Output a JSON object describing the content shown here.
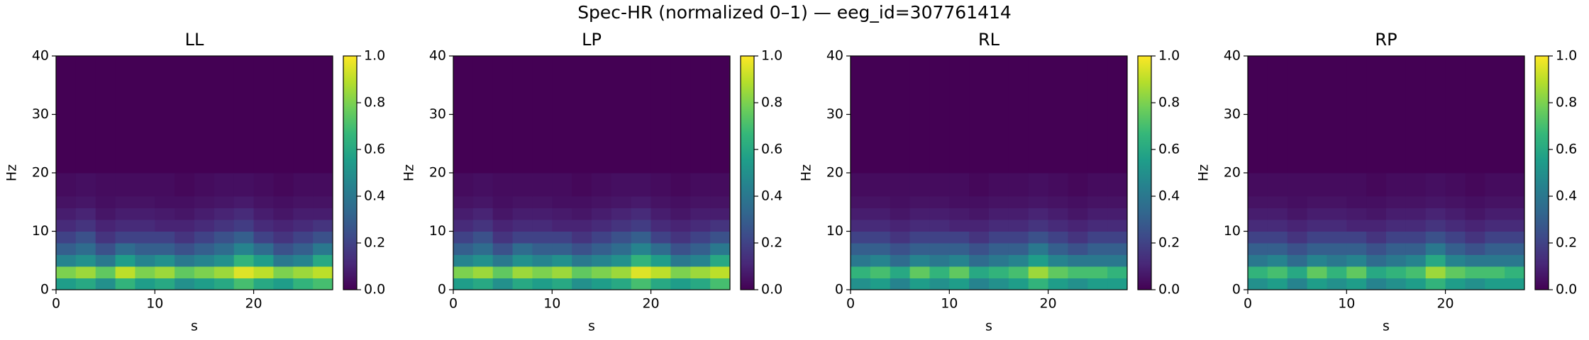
{
  "title": "Spec-HR (normalized 0–1) — eeg_id=307761414",
  "chart_data": [
    {
      "type": "heatmap",
      "title": "LL",
      "x_label": "s",
      "y_label": "Hz",
      "colormap": "viridis",
      "xbins": [
        0,
        2,
        4,
        6,
        8,
        10,
        12,
        14,
        16,
        18,
        20,
        22,
        24,
        26,
        28
      ],
      "ybins": [
        0,
        2,
        4,
        6,
        8,
        10,
        12,
        14,
        16,
        20,
        40
      ],
      "z": [
        [
          0.55,
          0.6,
          0.5,
          0.65,
          0.55,
          0.6,
          0.5,
          0.55,
          0.6,
          0.7,
          0.6,
          0.55,
          0.65,
          0.7
        ],
        [
          0.8,
          0.85,
          0.75,
          0.9,
          0.8,
          0.85,
          0.75,
          0.8,
          0.85,
          0.95,
          0.9,
          0.8,
          0.85,
          0.9
        ],
        [
          0.45,
          0.5,
          0.4,
          0.55,
          0.45,
          0.5,
          0.4,
          0.45,
          0.5,
          0.65,
          0.55,
          0.4,
          0.45,
          0.6
        ],
        [
          0.3,
          0.35,
          0.25,
          0.35,
          0.3,
          0.3,
          0.25,
          0.3,
          0.35,
          0.45,
          0.35,
          0.25,
          0.3,
          0.4
        ],
        [
          0.2,
          0.25,
          0.15,
          0.2,
          0.2,
          0.2,
          0.15,
          0.2,
          0.25,
          0.3,
          0.2,
          0.15,
          0.2,
          0.25
        ],
        [
          0.12,
          0.15,
          0.1,
          0.12,
          0.12,
          0.1,
          0.1,
          0.12,
          0.15,
          0.18,
          0.12,
          0.1,
          0.12,
          0.15
        ],
        [
          0.08,
          0.1,
          0.06,
          0.08,
          0.08,
          0.07,
          0.06,
          0.08,
          0.1,
          0.12,
          0.08,
          0.06,
          0.08,
          0.08
        ],
        [
          0.05,
          0.06,
          0.04,
          0.05,
          0.05,
          0.04,
          0.04,
          0.05,
          0.06,
          0.07,
          0.05,
          0.04,
          0.05,
          0.05
        ],
        [
          0.03,
          0.04,
          0.03,
          0.03,
          0.03,
          0.03,
          0.02,
          0.03,
          0.04,
          0.04,
          0.03,
          0.02,
          0.03,
          0.03
        ],
        [
          0,
          0,
          0,
          0,
          0,
          0,
          0,
          0,
          0,
          0,
          0,
          0,
          0,
          0
        ]
      ],
      "xlim": [
        0,
        28
      ],
      "ylim": [
        0,
        40
      ],
      "xticks": [
        0,
        10,
        20
      ],
      "yticks": [
        0,
        10,
        20,
        30,
        40
      ],
      "clim": [
        0,
        1
      ],
      "cticks": [
        {
          "value": 0,
          "label": "0.0"
        },
        0.2,
        0.4,
        0.6,
        0.8,
        {
          "value": 1,
          "label": "1.0"
        }
      ]
    },
    {
      "type": "heatmap",
      "title": "LP",
      "x_label": "s",
      "y_label": "Hz",
      "colormap": "viridis",
      "xbins": [
        0,
        2,
        4,
        6,
        8,
        10,
        12,
        14,
        16,
        18,
        20,
        22,
        24,
        26,
        28
      ],
      "ybins": [
        0,
        2,
        4,
        6,
        8,
        10,
        12,
        14,
        16,
        20,
        40
      ],
      "z": [
        [
          0.55,
          0.6,
          0.5,
          0.6,
          0.55,
          0.6,
          0.5,
          0.55,
          0.6,
          0.7,
          0.6,
          0.55,
          0.6,
          0.7
        ],
        [
          0.8,
          0.85,
          0.75,
          0.85,
          0.8,
          0.85,
          0.75,
          0.8,
          0.85,
          0.95,
          0.9,
          0.8,
          0.85,
          0.9
        ],
        [
          0.45,
          0.5,
          0.4,
          0.5,
          0.45,
          0.5,
          0.4,
          0.45,
          0.5,
          0.65,
          0.55,
          0.4,
          0.45,
          0.6
        ],
        [
          0.3,
          0.35,
          0.25,
          0.35,
          0.3,
          0.3,
          0.25,
          0.3,
          0.35,
          0.45,
          0.35,
          0.25,
          0.3,
          0.4
        ],
        [
          0.2,
          0.25,
          0.15,
          0.2,
          0.2,
          0.2,
          0.15,
          0.2,
          0.25,
          0.3,
          0.2,
          0.15,
          0.2,
          0.25
        ],
        [
          0.12,
          0.15,
          0.1,
          0.12,
          0.12,
          0.1,
          0.1,
          0.12,
          0.15,
          0.18,
          0.12,
          0.1,
          0.12,
          0.15
        ],
        [
          0.08,
          0.1,
          0.06,
          0.08,
          0.08,
          0.07,
          0.06,
          0.08,
          0.1,
          0.12,
          0.08,
          0.06,
          0.08,
          0.08
        ],
        [
          0.05,
          0.06,
          0.04,
          0.05,
          0.05,
          0.04,
          0.04,
          0.05,
          0.06,
          0.07,
          0.05,
          0.04,
          0.05,
          0.05
        ],
        [
          0.03,
          0.04,
          0.03,
          0.03,
          0.03,
          0.03,
          0.02,
          0.03,
          0.04,
          0.04,
          0.03,
          0.02,
          0.03,
          0.03
        ],
        [
          0,
          0,
          0,
          0,
          0,
          0,
          0,
          0,
          0,
          0,
          0,
          0,
          0,
          0
        ]
      ],
      "xlim": [
        0,
        28
      ],
      "ylim": [
        0,
        40
      ],
      "xticks": [
        0,
        10,
        20
      ],
      "yticks": [
        0,
        10,
        20,
        30,
        40
      ],
      "clim": [
        0,
        1
      ],
      "cticks": [
        {
          "value": 0,
          "label": "0.0"
        },
        0.2,
        0.4,
        0.6,
        0.8,
        {
          "value": 1,
          "label": "1.0"
        }
      ]
    },
    {
      "type": "heatmap",
      "title": "RL",
      "x_label": "s",
      "y_label": "Hz",
      "colormap": "viridis",
      "xbins": [
        0,
        2,
        4,
        6,
        8,
        10,
        12,
        14,
        16,
        18,
        20,
        22,
        24,
        26,
        28
      ],
      "ybins": [
        0,
        2,
        4,
        6,
        8,
        10,
        12,
        14,
        16,
        20,
        40
      ],
      "z": [
        [
          0.5,
          0.55,
          0.45,
          0.55,
          0.5,
          0.55,
          0.45,
          0.5,
          0.55,
          0.65,
          0.55,
          0.5,
          0.55,
          0.55
        ],
        [
          0.65,
          0.7,
          0.6,
          0.75,
          0.65,
          0.75,
          0.6,
          0.65,
          0.7,
          0.85,
          0.75,
          0.7,
          0.7,
          0.65
        ],
        [
          0.4,
          0.45,
          0.35,
          0.45,
          0.4,
          0.45,
          0.35,
          0.4,
          0.45,
          0.55,
          0.45,
          0.4,
          0.4,
          0.4
        ],
        [
          0.3,
          0.3,
          0.25,
          0.3,
          0.3,
          0.3,
          0.25,
          0.3,
          0.3,
          0.4,
          0.3,
          0.25,
          0.3,
          0.3
        ],
        [
          0.2,
          0.2,
          0.15,
          0.2,
          0.2,
          0.2,
          0.15,
          0.2,
          0.2,
          0.25,
          0.2,
          0.15,
          0.2,
          0.2
        ],
        [
          0.12,
          0.12,
          0.1,
          0.12,
          0.12,
          0.1,
          0.1,
          0.12,
          0.12,
          0.15,
          0.12,
          0.1,
          0.12,
          0.12
        ],
        [
          0.08,
          0.08,
          0.06,
          0.08,
          0.08,
          0.07,
          0.06,
          0.08,
          0.08,
          0.1,
          0.08,
          0.06,
          0.08,
          0.08
        ],
        [
          0.05,
          0.05,
          0.04,
          0.05,
          0.05,
          0.04,
          0.04,
          0.05,
          0.05,
          0.06,
          0.05,
          0.04,
          0.05,
          0.05
        ],
        [
          0.03,
          0.03,
          0.03,
          0.03,
          0.03,
          0.03,
          0.02,
          0.03,
          0.03,
          0.04,
          0.03,
          0.02,
          0.03,
          0.03
        ],
        [
          0,
          0,
          0,
          0,
          0,
          0,
          0,
          0,
          0,
          0,
          0,
          0,
          0,
          0
        ]
      ],
      "xlim": [
        0,
        28
      ],
      "ylim": [
        0,
        40
      ],
      "xticks": [
        0,
        10,
        20
      ],
      "yticks": [
        0,
        10,
        20,
        30,
        40
      ],
      "clim": [
        0,
        1
      ],
      "cticks": [
        {
          "value": 0,
          "label": "0.0"
        },
        0.2,
        0.4,
        0.6,
        0.8,
        {
          "value": 1,
          "label": "1.0"
        }
      ]
    },
    {
      "type": "heatmap",
      "title": "RP",
      "x_label": "s",
      "y_label": "Hz",
      "colormap": "viridis",
      "xbins": [
        0,
        2,
        4,
        6,
        8,
        10,
        12,
        14,
        16,
        18,
        20,
        22,
        24,
        26,
        28
      ],
      "ybins": [
        0,
        2,
        4,
        6,
        8,
        10,
        12,
        14,
        16,
        20,
        40
      ],
      "z": [
        [
          0.5,
          0.55,
          0.45,
          0.55,
          0.5,
          0.55,
          0.45,
          0.5,
          0.55,
          0.65,
          0.55,
          0.5,
          0.55,
          0.55
        ],
        [
          0.65,
          0.7,
          0.6,
          0.75,
          0.65,
          0.75,
          0.6,
          0.65,
          0.7,
          0.85,
          0.75,
          0.7,
          0.7,
          0.65
        ],
        [
          0.4,
          0.45,
          0.35,
          0.45,
          0.4,
          0.45,
          0.35,
          0.4,
          0.45,
          0.6,
          0.45,
          0.4,
          0.4,
          0.4
        ],
        [
          0.3,
          0.3,
          0.25,
          0.3,
          0.3,
          0.3,
          0.25,
          0.3,
          0.3,
          0.4,
          0.3,
          0.25,
          0.3,
          0.3
        ],
        [
          0.2,
          0.2,
          0.15,
          0.2,
          0.2,
          0.2,
          0.15,
          0.2,
          0.2,
          0.25,
          0.2,
          0.15,
          0.2,
          0.2
        ],
        [
          0.12,
          0.12,
          0.1,
          0.12,
          0.12,
          0.1,
          0.1,
          0.12,
          0.12,
          0.15,
          0.12,
          0.1,
          0.12,
          0.12
        ],
        [
          0.08,
          0.08,
          0.06,
          0.08,
          0.08,
          0.07,
          0.06,
          0.08,
          0.08,
          0.1,
          0.08,
          0.06,
          0.08,
          0.08
        ],
        [
          0.05,
          0.05,
          0.04,
          0.05,
          0.05,
          0.04,
          0.04,
          0.05,
          0.05,
          0.06,
          0.05,
          0.04,
          0.05,
          0.05
        ],
        [
          0.03,
          0.03,
          0.03,
          0.03,
          0.03,
          0.03,
          0.02,
          0.03,
          0.03,
          0.04,
          0.03,
          0.02,
          0.03,
          0.03
        ],
        [
          0,
          0,
          0,
          0,
          0,
          0,
          0,
          0,
          0,
          0,
          0,
          0,
          0,
          0
        ]
      ],
      "xlim": [
        0,
        28
      ],
      "ylim": [
        0,
        40
      ],
      "xticks": [
        0,
        10,
        20
      ],
      "yticks": [
        0,
        10,
        20,
        30,
        40
      ],
      "clim": [
        0,
        1
      ],
      "cticks": [
        {
          "value": 0,
          "label": "0.0"
        },
        0.2,
        0.4,
        0.6,
        0.8,
        {
          "value": 1,
          "label": "1.0"
        }
      ]
    }
  ]
}
